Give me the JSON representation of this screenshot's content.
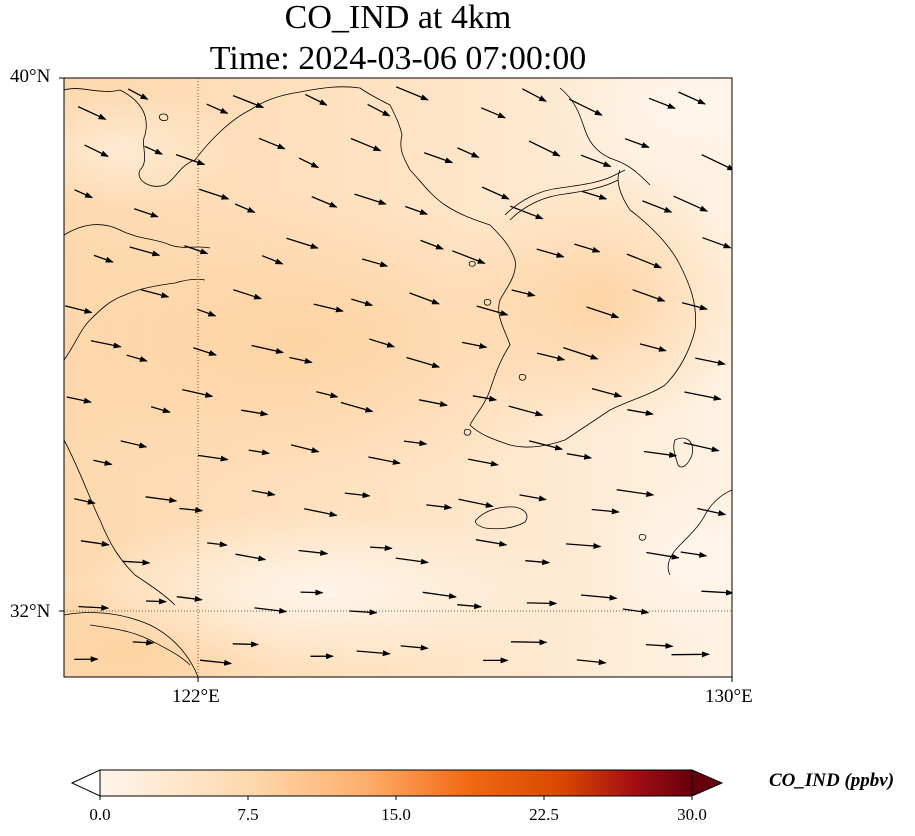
{
  "title": {
    "line1": "CO_IND at 4km",
    "line2": "Time: 2024-03-06 07:00:00"
  },
  "map": {
    "variable": "CO_IND",
    "units": "ppbv",
    "level": "4km",
    "time": "2024-03-06 07:00:00",
    "lat_ticks": [
      "40°N",
      "32°N"
    ],
    "lon_ticks": [
      "122°E",
      "130°E"
    ],
    "gridlines": "dotted",
    "layers": [
      "concentration field",
      "coastlines",
      "wind vectors"
    ]
  },
  "colorbar": {
    "label": "CO_IND (ppbv)",
    "ticks": [
      "0.0",
      "7.5",
      "15.0",
      "22.5",
      "30.0"
    ],
    "min": 0,
    "max": 30,
    "extend": "both",
    "colormap": "Oranges-to-dark-red",
    "colors": [
      "#fff5eb",
      "#fdd9ae",
      "#fdae6b",
      "#f16913",
      "#d94801",
      "#a50f15",
      "#67000d"
    ]
  }
}
